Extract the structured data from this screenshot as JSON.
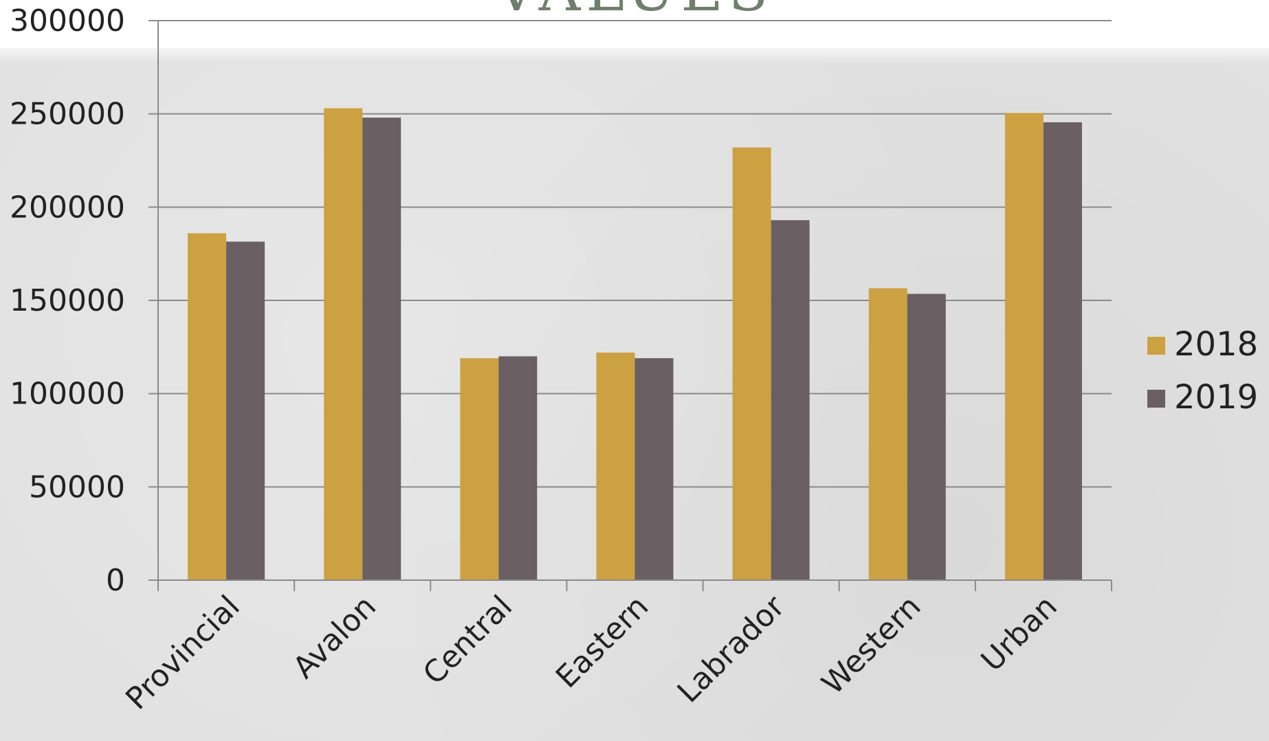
{
  "slide": {
    "title": "VALUES"
  },
  "colors": {
    "series_2018": "#cca142",
    "series_2019": "#6a5f62",
    "gridline": "#8a8a8a",
    "axis": "#8a8a8a",
    "title": "#6f7f6b"
  },
  "chart_data": {
    "type": "bar",
    "title": "",
    "xlabel": "",
    "ylabel": "",
    "categories": [
      "Provincial",
      "Avalon",
      "Central",
      "Eastern",
      "Labrador",
      "Western",
      "Urban"
    ],
    "series": [
      {
        "name": "2018",
        "values": [
          186000,
          253000,
          119000,
          122000,
          232000,
          156500,
          250500
        ]
      },
      {
        "name": "2019",
        "values": [
          181500,
          248000,
          120000,
          119000,
          193000,
          153500,
          245500
        ]
      }
    ],
    "ylim": [
      0,
      300000
    ],
    "yticks": [
      0,
      50000,
      100000,
      150000,
      200000,
      250000,
      300000
    ],
    "ytick_labels": [
      "0",
      "50000",
      "100000",
      "150000",
      "200000",
      "250000",
      "300000"
    ],
    "grid": true,
    "legend_position": "right"
  }
}
